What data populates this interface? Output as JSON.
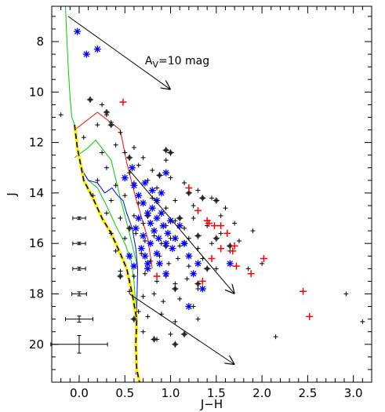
{
  "chart_data": {
    "type": "scatter",
    "title": "",
    "xlabel": "J−H",
    "ylabel": "J",
    "xlim": [
      -0.3,
      3.2
    ],
    "ylim": [
      21.5,
      6.6
    ],
    "y_inverted": true,
    "grid": false,
    "x_ticks": [
      0.0,
      0.5,
      1.0,
      1.5,
      2.0,
      2.5,
      3.0
    ],
    "x_tick_labels": [
      "0.0",
      "0.5",
      "1.0",
      "1.5",
      "2.0",
      "2.5",
      "3.0"
    ],
    "y_ticks": [
      8,
      10,
      12,
      14,
      16,
      18,
      20
    ],
    "y_tick_labels": [
      "8",
      "10",
      "12",
      "14",
      "16",
      "18",
      "20"
    ],
    "annotation": {
      "text_main": "A",
      "text_sub": "V",
      "text_tail": "=10 mag",
      "x": 0.72,
      "y": 8.9
    },
    "reddening_vectors": [
      {
        "from": [
          -0.12,
          7.0
        ],
        "to": [
          1.0,
          9.9
        ]
      },
      {
        "from": [
          0.55,
          13.1
        ],
        "to": [
          1.7,
          18.0
        ]
      },
      {
        "from": [
          0.55,
          18.0
        ],
        "to": [
          1.7,
          20.8
        ]
      }
    ],
    "error_bars": [
      {
        "x": 0.0,
        "y": 15.0,
        "xerr": 0.07,
        "yerr": 0.05
      },
      {
        "x": 0.0,
        "y": 16.0,
        "xerr": 0.07,
        "yerr": 0.05
      },
      {
        "x": 0.0,
        "y": 17.0,
        "xerr": 0.07,
        "yerr": 0.06
      },
      {
        "x": 0.0,
        "y": 18.0,
        "xerr": 0.08,
        "yerr": 0.08
      },
      {
        "x": 0.0,
        "y": 19.0,
        "xerr": 0.15,
        "yerr": 0.12
      },
      {
        "x": 0.0,
        "y": 20.0,
        "xerr": 0.31,
        "yerr": 0.35
      }
    ],
    "isochrones": [
      {
        "color": "#00cc00",
        "points": [
          [
            -0.15,
            6.6
          ],
          [
            -0.14,
            7.5
          ],
          [
            -0.12,
            9.0
          ],
          [
            -0.1,
            10.2
          ],
          [
            -0.08,
            11.0
          ],
          [
            -0.03,
            11.5
          ],
          [
            0.0,
            12.5
          ],
          [
            0.05,
            13.2
          ],
          [
            0.1,
            13.5
          ],
          [
            0.2,
            13.8
          ],
          [
            0.3,
            14.5
          ],
          [
            0.4,
            15.3
          ],
          [
            0.5,
            16.0
          ],
          [
            0.57,
            16.7
          ],
          [
            0.6,
            17.5
          ],
          [
            0.62,
            18.5
          ],
          [
            0.62,
            19.5
          ],
          [
            0.62,
            21.0
          ]
        ]
      },
      {
        "color": "#00cc00",
        "points": [
          [
            -0.05,
            12.6
          ],
          [
            0.1,
            12.2
          ],
          [
            0.18,
            11.9
          ],
          [
            0.35,
            12.7
          ],
          [
            0.45,
            14.2
          ],
          [
            0.55,
            15.6
          ],
          [
            0.63,
            16.8
          ]
        ]
      },
      {
        "color": "#ff0000",
        "points": [
          [
            -0.05,
            11.5
          ],
          [
            0.2,
            10.8
          ],
          [
            0.45,
            11.5
          ],
          [
            0.52,
            12.8
          ],
          [
            0.62,
            14.2
          ],
          [
            0.75,
            15.8
          ],
          [
            0.8,
            17.0
          ]
        ]
      },
      {
        "color": "#0000ff",
        "points": [
          [
            -0.04,
            11.3
          ],
          [
            -0.01,
            12.4
          ],
          [
            0.05,
            13.2
          ],
          [
            0.1,
            13.5
          ],
          [
            0.2,
            13.6
          ],
          [
            0.28,
            14.0
          ],
          [
            0.36,
            13.8
          ],
          [
            0.42,
            14.1
          ],
          [
            0.48,
            14.3
          ],
          [
            0.52,
            14.8
          ],
          [
            0.58,
            15.4
          ],
          [
            0.62,
            16.2
          ],
          [
            0.64,
            17.0
          ],
          [
            0.63,
            18.5
          ],
          [
            0.62,
            20.0
          ],
          [
            0.62,
            21.2
          ]
        ]
      }
    ],
    "main_sequence": {
      "style": "dashed-black-on-yellow",
      "points": [
        [
          -0.05,
          11.3
        ],
        [
          -0.02,
          12.2
        ],
        [
          0.05,
          13.5
        ],
        [
          0.15,
          14.2
        ],
        [
          0.25,
          15.0
        ],
        [
          0.35,
          15.6
        ],
        [
          0.45,
          16.4
        ],
        [
          0.52,
          17.0
        ],
        [
          0.58,
          18.0
        ],
        [
          0.63,
          19.0
        ],
        [
          0.62,
          20.0
        ],
        [
          0.63,
          21.0
        ],
        [
          0.66,
          21.5
        ]
      ]
    },
    "series": [
      {
        "marker": "plus",
        "color": "#000000",
        "points": [
          [
            -0.2,
            10.9
          ],
          [
            0.25,
            10.5
          ],
          [
            0.3,
            10.9
          ],
          [
            0.2,
            11.3
          ],
          [
            0.35,
            11.2
          ],
          [
            0.45,
            11.6
          ],
          [
            0.05,
            11.8
          ],
          [
            0.25,
            12.4
          ],
          [
            0.4,
            12.1
          ],
          [
            0.5,
            12.4
          ],
          [
            0.6,
            12.2
          ],
          [
            0.7,
            12.6
          ],
          [
            0.3,
            13.0
          ],
          [
            0.55,
            13.2
          ],
          [
            0.65,
            12.9
          ],
          [
            0.8,
            13.1
          ],
          [
            0.95,
            12.7
          ],
          [
            0.2,
            13.5
          ],
          [
            0.4,
            13.7
          ],
          [
            0.6,
            13.6
          ],
          [
            0.75,
            13.5
          ],
          [
            0.85,
            13.8
          ],
          [
            1.0,
            13.4
          ],
          [
            1.15,
            13.6
          ],
          [
            1.3,
            13.9
          ],
          [
            0.15,
            14.1
          ],
          [
            0.35,
            14.3
          ],
          [
            0.5,
            14.1
          ],
          [
            0.65,
            14.4
          ],
          [
            0.8,
            14.2
          ],
          [
            0.95,
            14.6
          ],
          [
            1.05,
            14.3
          ],
          [
            1.25,
            14.5
          ],
          [
            1.45,
            14.2
          ],
          [
            1.6,
            14.6
          ],
          [
            0.3,
            14.8
          ],
          [
            0.45,
            15.0
          ],
          [
            0.6,
            14.9
          ],
          [
            0.7,
            15.2
          ],
          [
            0.85,
            15.0
          ],
          [
            0.95,
            15.3
          ],
          [
            1.05,
            15.1
          ],
          [
            1.15,
            15.4
          ],
          [
            1.25,
            15.0
          ],
          [
            1.4,
            15.3
          ],
          [
            1.55,
            15.6
          ],
          [
            1.7,
            15.2
          ],
          [
            0.35,
            15.6
          ],
          [
            0.5,
            15.8
          ],
          [
            0.62,
            15.6
          ],
          [
            0.72,
            15.9
          ],
          [
            0.82,
            15.7
          ],
          [
            0.9,
            16.0
          ],
          [
            1.0,
            15.8
          ],
          [
            1.1,
            16.1
          ],
          [
            1.2,
            15.8
          ],
          [
            1.3,
            16.2
          ],
          [
            1.45,
            16.0
          ],
          [
            1.65,
            16.3
          ],
          [
            0.4,
            16.3
          ],
          [
            0.55,
            16.5
          ],
          [
            0.68,
            16.4
          ],
          [
            0.78,
            16.7
          ],
          [
            0.88,
            16.5
          ],
          [
            0.98,
            16.8
          ],
          [
            1.08,
            16.6
          ],
          [
            1.2,
            16.9
          ],
          [
            1.35,
            16.6
          ],
          [
            1.5,
            17.0
          ],
          [
            0.45,
            17.1
          ],
          [
            0.6,
            17.3
          ],
          [
            0.72,
            17.2
          ],
          [
            0.85,
            17.5
          ],
          [
            0.95,
            17.3
          ],
          [
            1.05,
            17.6
          ],
          [
            1.18,
            17.4
          ],
          [
            1.3,
            17.8
          ],
          [
            0.55,
            17.9
          ],
          [
            0.7,
            18.1
          ],
          [
            0.82,
            18.0
          ],
          [
            0.92,
            18.3
          ],
          [
            1.1,
            18.2
          ],
          [
            1.25,
            18.5
          ],
          [
            0.65,
            18.7
          ],
          [
            0.75,
            18.9
          ],
          [
            0.9,
            18.8
          ],
          [
            1.05,
            19.1
          ],
          [
            1.3,
            19.0
          ],
          [
            0.7,
            19.5
          ],
          [
            0.85,
            19.8
          ],
          [
            1.0,
            19.6
          ],
          [
            2.15,
            19.7
          ],
          [
            2.92,
            18.0
          ],
          [
            3.1,
            19.1
          ],
          [
            1.85,
            17.0
          ],
          [
            2.0,
            16.8
          ],
          [
            1.75,
            15.9
          ],
          [
            1.55,
            14.9
          ],
          [
            1.9,
            15.5
          ]
        ]
      },
      {
        "marker": "diamond",
        "color": "#555555",
        "points": [
          [
            0.12,
            10.3
          ],
          [
            0.3,
            10.8
          ],
          [
            0.35,
            11.3
          ],
          [
            0.55,
            12.6
          ],
          [
            0.95,
            12.3
          ],
          [
            1.0,
            12.4
          ],
          [
            0.88,
            13.3
          ],
          [
            1.2,
            14.0
          ],
          [
            1.35,
            14.2
          ],
          [
            1.5,
            14.3
          ],
          [
            0.75,
            14.9
          ],
          [
            1.1,
            15.0
          ],
          [
            1.3,
            15.7
          ],
          [
            1.5,
            15.8
          ],
          [
            1.65,
            16.1
          ],
          [
            0.95,
            16.1
          ],
          [
            1.15,
            16.0
          ],
          [
            1.4,
            17.0
          ],
          [
            1.3,
            17.6
          ],
          [
            1.05,
            17.8
          ],
          [
            1.15,
            19.6
          ],
          [
            0.82,
            19.8
          ],
          [
            1.05,
            20.0
          ],
          [
            0.6,
            19.0
          ],
          [
            0.45,
            17.3
          ],
          [
            0.55,
            15.4
          ]
        ]
      },
      {
        "marker": "asterisk",
        "color": "#0000ff",
        "points": [
          [
            -0.02,
            7.6
          ],
          [
            0.08,
            8.5
          ],
          [
            0.2,
            8.3
          ],
          [
            0.5,
            13.4
          ],
          [
            0.6,
            13.7
          ],
          [
            0.65,
            14.1
          ],
          [
            0.7,
            14.4
          ],
          [
            0.72,
            13.6
          ],
          [
            0.75,
            14.8
          ],
          [
            0.78,
            15.2
          ],
          [
            0.8,
            14.6
          ],
          [
            0.82,
            15.5
          ],
          [
            0.85,
            15.0
          ],
          [
            0.87,
            15.8
          ],
          [
            0.9,
            14.8
          ],
          [
            0.92,
            15.3
          ],
          [
            0.95,
            16.0
          ],
          [
            0.97,
            15.6
          ],
          [
            1.0,
            15.1
          ],
          [
            1.02,
            16.2
          ],
          [
            1.05,
            15.8
          ],
          [
            0.7,
            15.7
          ],
          [
            0.68,
            16.2
          ],
          [
            0.72,
            16.5
          ],
          [
            0.78,
            16.0
          ],
          [
            0.85,
            16.4
          ],
          [
            0.88,
            16.8
          ],
          [
            0.75,
            17.0
          ],
          [
            0.95,
            17.2
          ],
          [
            0.6,
            16.9
          ],
          [
            0.55,
            16.5
          ],
          [
            0.65,
            15.0
          ],
          [
            0.62,
            15.4
          ],
          [
            0.85,
            14.3
          ],
          [
            0.9,
            14.0
          ],
          [
            0.8,
            13.9
          ],
          [
            1.1,
            15.3
          ],
          [
            1.15,
            16.0
          ],
          [
            1.2,
            16.5
          ],
          [
            1.3,
            16.8
          ],
          [
            1.25,
            17.2
          ],
          [
            1.35,
            17.8
          ],
          [
            1.65,
            16.8
          ],
          [
            1.2,
            18.5
          ],
          [
            0.75,
            16.8
          ],
          [
            0.58,
            13.0
          ],
          [
            0.95,
            13.2
          ]
        ]
      },
      {
        "marker": "plus",
        "color": "#ff0000",
        "points": [
          [
            0.48,
            10.4
          ],
          [
            1.2,
            13.8
          ],
          [
            1.3,
            14.7
          ],
          [
            1.4,
            15.1
          ],
          [
            1.42,
            15.2
          ],
          [
            1.48,
            15.3
          ],
          [
            1.55,
            15.3
          ],
          [
            1.62,
            15.6
          ],
          [
            1.7,
            16.1
          ],
          [
            1.68,
            16.3
          ],
          [
            1.55,
            16.2
          ],
          [
            1.45,
            16.6
          ],
          [
            1.72,
            16.9
          ],
          [
            1.88,
            17.2
          ],
          [
            2.02,
            16.6
          ],
          [
            1.35,
            17.5
          ],
          [
            2.45,
            17.9
          ],
          [
            2.52,
            18.9
          ],
          [
            0.85,
            17.3
          ]
        ]
      }
    ]
  }
}
